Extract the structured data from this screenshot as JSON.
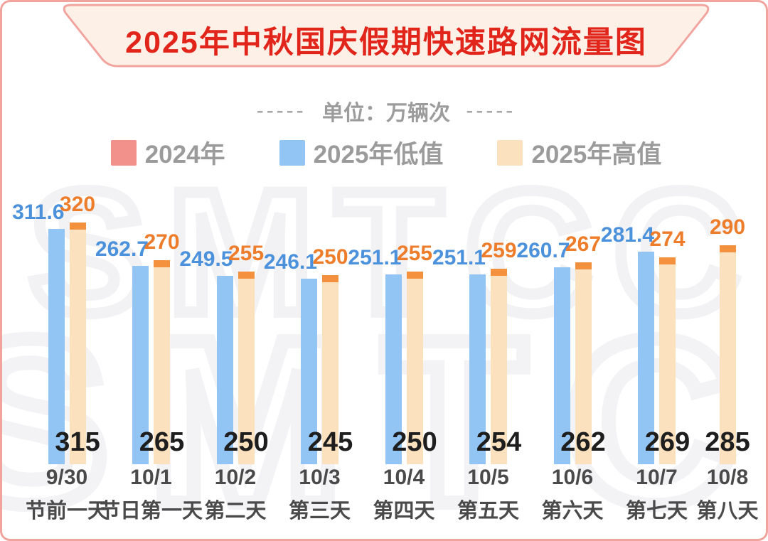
{
  "banner": {
    "title": "2025年中秋国庆假期快速路网流量图",
    "title_color": "#E1251B",
    "background": "#FDF0E7",
    "border_color": "#F1A49E"
  },
  "subtitle": {
    "dashes_left": "-----",
    "text": "单位：万辆次",
    "dashes_right": "-----",
    "color": "#9C9C9C"
  },
  "legend": {
    "items": [
      {
        "label": "2024年",
        "color": "#F2918C"
      },
      {
        "label": "2025年低值",
        "color": "#92C5F4"
      },
      {
        "label": "2025年高值",
        "color": "#FBE1BE"
      }
    ]
  },
  "watermark": {
    "text": "SMTCC"
  },
  "chart_data": {
    "type": "bar",
    "title": "2025年中秋国庆假期快速路网流量图",
    "unit": "万辆次",
    "categories": [
      {
        "date": "9/30",
        "day": "节前一天"
      },
      {
        "date": "10/1",
        "day": "节日第一天"
      },
      {
        "date": "10/2",
        "day": "第二天"
      },
      {
        "date": "10/3",
        "day": "第三天"
      },
      {
        "date": "10/4",
        "day": "第四天"
      },
      {
        "date": "10/5",
        "day": "第五天"
      },
      {
        "date": "10/6",
        "day": "第六天"
      },
      {
        "date": "10/7",
        "day": "第七天"
      },
      {
        "date": "10/8",
        "day": "第八天"
      }
    ],
    "series": [
      {
        "name": "2024年",
        "values": [
          315,
          265,
          250,
          245,
          250,
          254,
          262,
          269,
          285
        ],
        "color": "#F2918C",
        "label_color": "#1E1E1E",
        "render": "numeric labels at bar base"
      },
      {
        "name": "2025年低值",
        "values": [
          311.6,
          262.7,
          249.5,
          246.1,
          251.1,
          251.1,
          260.7,
          281.4,
          null
        ],
        "color": "#92C5F4",
        "label_color": "#4B91DB"
      },
      {
        "name": "2025年高值",
        "values": [
          320,
          270,
          255,
          250,
          255,
          259,
          267,
          274,
          290
        ],
        "color": "#FBE1BE",
        "cap_color": "#F4913F",
        "label_color": "#EE7D2B"
      }
    ],
    "ylim": [
      0,
      340
    ],
    "grid": false,
    "legend_position": "top"
  }
}
